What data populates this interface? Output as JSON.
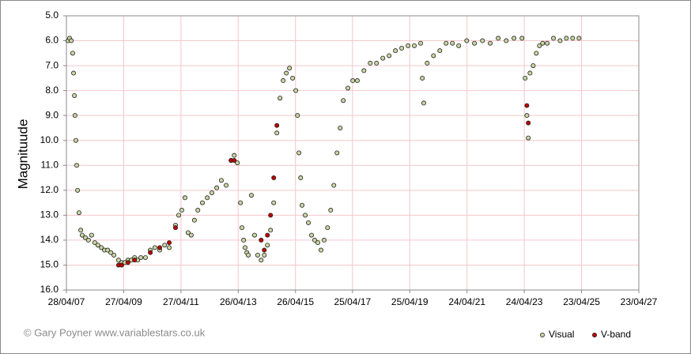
{
  "chart_data": {
    "type": "scatter",
    "y_label": "Magnituude",
    "credit": "© Gary Poyner www.variablestars.co.uk",
    "ylim": [
      16,
      5
    ],
    "yticks": [
      {
        "value": 5,
        "label": "5.0"
      },
      {
        "value": 6,
        "label": "6.0"
      },
      {
        "value": 7,
        "label": "7.0"
      },
      {
        "value": 8,
        "label": "8.0"
      },
      {
        "value": 9,
        "label": "9.0"
      },
      {
        "value": 10,
        "label": "10.0"
      },
      {
        "value": 11,
        "label": "11.0"
      },
      {
        "value": 12,
        "label": "12.0"
      },
      {
        "value": 13,
        "label": "13.0"
      },
      {
        "value": 14,
        "label": "14.0"
      },
      {
        "value": 15,
        "label": "15.0"
      },
      {
        "value": 16,
        "label": "16.0"
      }
    ],
    "xlim": [
      2007.32,
      2027.31
    ],
    "xticks": [
      {
        "value": 2007.32,
        "label": "28/04/07"
      },
      {
        "value": 2009.32,
        "label": "27/04/09"
      },
      {
        "value": 2011.32,
        "label": "27/04/11"
      },
      {
        "value": 2013.32,
        "label": "26/04/13"
      },
      {
        "value": 2015.32,
        "label": "26/04/15"
      },
      {
        "value": 2017.31,
        "label": "25/04/17"
      },
      {
        "value": 2019.31,
        "label": "25/04/19"
      },
      {
        "value": 2021.31,
        "label": "24/04/21"
      },
      {
        "value": 2023.31,
        "label": "24/04/23"
      },
      {
        "value": 2025.31,
        "label": "23/04/25"
      },
      {
        "value": 2027.31,
        "label": "23/04/27"
      }
    ],
    "grid": true,
    "legend": "bottom-right",
    "series": [
      {
        "name": "Visual",
        "color": "#c9d5a3",
        "x": [
          2007.38,
          2007.43,
          2007.49,
          2007.54,
          2007.57,
          2007.6,
          2007.62,
          2007.65,
          2007.68,
          2007.71,
          2007.76,
          2007.82,
          2007.87,
          2007.98,
          2008.09,
          2008.2,
          2008.31,
          2008.42,
          2008.54,
          2008.65,
          2008.76,
          2008.87,
          2008.98,
          2009.14,
          2009.25,
          2009.36,
          2009.47,
          2009.59,
          2009.7,
          2009.81,
          2009.92,
          2010.08,
          2010.25,
          2010.41,
          2010.58,
          2010.75,
          2010.91,
          2011.13,
          2011.24,
          2011.35,
          2011.46,
          2011.57,
          2011.68,
          2011.79,
          2011.91,
          2012.07,
          2012.24,
          2012.4,
          2012.57,
          2012.73,
          2012.9,
          2013.07,
          2013.18,
          2013.29,
          2013.4,
          2013.45,
          2013.51,
          2013.56,
          2013.62,
          2013.67,
          2013.78,
          2013.89,
          2014.0,
          2014.12,
          2014.23,
          2014.34,
          2014.45,
          2014.56,
          2014.67,
          2014.78,
          2014.89,
          2015.0,
          2015.11,
          2015.22,
          2015.33,
          2015.39,
          2015.44,
          2015.5,
          2015.55,
          2015.66,
          2015.77,
          2015.88,
          2015.99,
          2016.1,
          2016.21,
          2016.32,
          2016.44,
          2016.55,
          2016.66,
          2016.77,
          2016.88,
          2016.99,
          2017.15,
          2017.32,
          2017.48,
          2017.71,
          2017.93,
          2018.15,
          2018.37,
          2018.59,
          2018.81,
          2019.03,
          2019.25,
          2019.47,
          2019.69,
          2019.75,
          2019.8,
          2019.92,
          2020.14,
          2020.36,
          2020.58,
          2020.8,
          2021.02,
          2021.3,
          2021.57,
          2021.85,
          2022.12,
          2022.4,
          2022.68,
          2022.95,
          2023.23,
          2023.34,
          2023.4,
          2023.45,
          2023.51,
          2023.62,
          2023.73,
          2023.84,
          2023.95,
          2024.11,
          2024.33,
          2024.56,
          2024.78,
          2025.0,
          2025.22
        ],
        "values": [
          6.0,
          5.9,
          6.0,
          6.5,
          7.3,
          8.2,
          9.0,
          10.0,
          11.0,
          12.0,
          12.9,
          13.6,
          13.8,
          13.9,
          14.0,
          13.8,
          14.1,
          14.2,
          14.3,
          14.4,
          14.4,
          14.5,
          14.6,
          14.8,
          14.9,
          14.9,
          14.8,
          14.8,
          14.7,
          14.8,
          14.7,
          14.7,
          14.4,
          14.3,
          14.4,
          14.2,
          14.3,
          13.4,
          13.0,
          12.8,
          12.3,
          13.7,
          13.8,
          13.2,
          12.8,
          12.5,
          12.3,
          12.1,
          11.9,
          11.6,
          11.8,
          10.8,
          10.6,
          10.9,
          12.5,
          13.5,
          14.0,
          14.3,
          14.5,
          14.6,
          12.2,
          13.8,
          14.6,
          14.8,
          14.6,
          14.2,
          13.6,
          12.5,
          9.7,
          8.3,
          7.6,
          7.3,
          7.1,
          7.5,
          8.0,
          9.0,
          10.5,
          11.5,
          12.6,
          13.0,
          13.3,
          13.8,
          14.0,
          14.1,
          14.4,
          14.0,
          13.5,
          12.8,
          11.8,
          10.5,
          9.5,
          8.4,
          7.9,
          7.6,
          7.6,
          7.2,
          6.9,
          6.9,
          6.7,
          6.6,
          6.4,
          6.3,
          6.2,
          6.2,
          6.1,
          7.5,
          8.5,
          6.9,
          6.6,
          6.4,
          6.1,
          6.1,
          6.2,
          6.0,
          6.1,
          6.0,
          6.1,
          5.9,
          6.0,
          5.9,
          5.9,
          7.5,
          9.0,
          9.9,
          7.3,
          7.0,
          6.5,
          6.2,
          6.1,
          6.1,
          5.9,
          6.0,
          5.9,
          5.9,
          5.9
        ]
      },
      {
        "name": "V-band",
        "color": "#c00000",
        "x": [
          2009.14,
          2009.25,
          2009.47,
          2009.7,
          2010.25,
          2010.58,
          2010.91,
          2011.13,
          2013.07,
          2013.18,
          2014.12,
          2014.23,
          2014.34,
          2014.45,
          2014.56,
          2014.67,
          2023.4,
          2023.45
        ],
        "values": [
          15.0,
          15.0,
          14.9,
          14.8,
          14.5,
          14.3,
          14.1,
          13.5,
          10.8,
          10.8,
          14.0,
          14.4,
          13.8,
          13.0,
          11.5,
          9.4,
          8.6,
          9.3
        ]
      }
    ]
  }
}
